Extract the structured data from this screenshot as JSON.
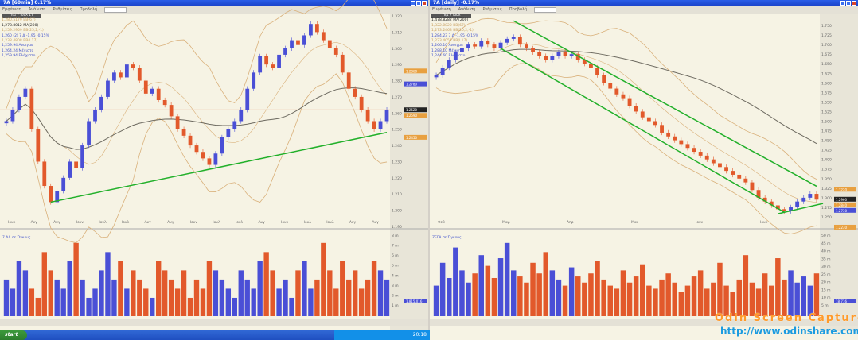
{
  "left": {
    "title": "7A [60min]  0.17%",
    "menu": [
      "Εμφάνιση",
      "Ανάλυση",
      "Ρυθμίσεις",
      "Προβολή"
    ],
    "legend": {
      "header": "Πιμ 7 Ιουλ 17",
      "lines": [
        {
          "t": "1,280.5179 BB(67)",
          "c": "#c8a060"
        },
        {
          "t": "1,278.8012 MA(200)",
          "c": "#222222"
        },
        {
          "t": "1,259.2959 BB(25,2,-1)",
          "c": "#c8a060"
        },
        {
          "t": "1,260 (2) 7 Δ  -1.95  -0.15%",
          "c": "#4455cc"
        },
        {
          "t": "1,238.4808 BB(L17)",
          "c": "#c8a060"
        },
        {
          "t": "1,259.94 Ανοιγμα",
          "c": "#4455cc"
        },
        {
          "t": "1,264.24 Μέγιστο",
          "c": "#4455cc"
        },
        {
          "t": "1,259.94 Ελάχιστο",
          "c": "#4455cc"
        }
      ]
    },
    "xlabels": [
      "Ιουλ",
      "Αυγ",
      "Αυγ",
      "Ιουν",
      "Ιουλ",
      "Ιουλ",
      "Αυγ",
      "Αυγ",
      "Ιουν",
      "Ιουλ",
      "Ιουλ",
      "Αυγ",
      "Ιουν",
      "Ιουλ",
      "Ιουλ",
      "Αυγ",
      "Αυγ"
    ],
    "vol_label": "7 ΔΔ σε Όγκους",
    "vol_ticks": [
      "8 m",
      "7 m",
      "6 m",
      "5 m",
      "4 m",
      "3 m",
      "2 m",
      "1 m"
    ],
    "vol_badge": "1,815,016"
  },
  "right": {
    "title": "7A [daily]  -0.17%",
    "menu": [
      "Εμφάνιση",
      "Ανάλυση",
      "Ρυθμίσεις",
      "Προβολή"
    ],
    "legend": {
      "header": "Πιμ 7 Ιουλ",
      "lines": [
        {
          "t": "1,478.8282 MA(200)",
          "c": "#222222"
        },
        {
          "t": "1,322.0820 BB(67)",
          "c": "#c8a060"
        },
        {
          "t": "1,273.2468 BB(20,2,-1)",
          "c": "#c8a060"
        },
        {
          "t": "1,284.23 7 Δ  -1.95  -0.15%",
          "c": "#4455cc"
        },
        {
          "t": "1,223.4051 BB(L17)",
          "c": "#c8a060"
        },
        {
          "t": "1,266.10 Ανοιγμα",
          "c": "#4455cc"
        },
        {
          "t": "1,288.10 Μέγιστο",
          "c": "#4455cc"
        },
        {
          "t": "1,244.60 Ελάχιστο",
          "c": "#4455cc"
        }
      ]
    },
    "xlabels": [
      "Φεβ",
      "Μαρ",
      "Απρ",
      "Μαι",
      "Ιουν",
      "Ιουλ"
    ],
    "vol_label": "ΖΕΓΑ σε Όγκους",
    "vol_ticks": [
      "50 m",
      "45 m",
      "40 m",
      "35 m",
      "30 m",
      "25 m",
      "20 m",
      "15 m",
      "10 m",
      "5 m"
    ],
    "vol_badge": "18,716"
  },
  "taskbar": {
    "start": "start",
    "clock": "20:18"
  },
  "watermark": {
    "line1": "Odin Screen Capture",
    "line2": "http://www.odinshare.com"
  },
  "colors": {
    "up": "#4a4fd6",
    "down": "#e2592b",
    "ma": "#6d6a60",
    "bands": "#d9b07a",
    "trend": "#22b02a",
    "bg": "#f6f3e4"
  },
  "chart_data": [
    {
      "type": "candlestick",
      "panel": "left",
      "ylim": [
        1.19,
        1.32
      ],
      "yticks": [
        1.32,
        1.31,
        1.3,
        1.29,
        1.28,
        1.27,
        1.26,
        1.25,
        1.24,
        1.23,
        1.22,
        1.21,
        1.2,
        1.19
      ],
      "close": [
        1.255,
        1.262,
        1.27,
        1.275,
        1.25,
        1.23,
        1.215,
        1.205,
        1.212,
        1.22,
        1.23,
        1.226,
        1.24,
        1.255,
        1.262,
        1.27,
        1.28,
        1.285,
        1.282,
        1.29,
        1.288,
        1.28,
        1.272,
        1.275,
        1.268,
        1.265,
        1.258,
        1.25,
        1.246,
        1.24,
        1.236,
        1.232,
        1.228,
        1.235,
        1.245,
        1.25,
        1.255,
        1.262,
        1.275,
        1.285,
        1.295,
        1.29,
        1.288,
        1.296,
        1.3,
        1.305,
        1.302,
        1.308,
        1.315,
        1.31,
        1.305,
        1.3,
        1.296,
        1.285,
        1.275,
        1.27,
        1.262,
        1.255,
        1.25,
        1.255,
        1.262
      ],
      "volume": [
        4,
        3,
        6,
        5,
        3,
        2,
        7,
        5,
        4,
        3,
        6,
        8,
        4,
        2,
        3,
        5,
        7,
        4,
        6,
        3,
        5,
        4,
        3,
        2,
        6,
        5,
        4,
        3,
        5,
        2,
        4,
        3,
        6,
        5,
        4,
        3,
        2,
        5,
        4,
        3,
        6,
        7,
        5,
        3,
        4,
        2,
        5,
        6,
        3,
        4,
        8,
        5,
        3,
        6,
        4,
        5,
        3,
        4,
        6,
        5,
        4
      ],
      "price_markers": [
        1.286,
        1.262,
        1.259,
        1.278,
        1.245
      ],
      "trendlines": [
        {
          "from": [
            7,
            1.205
          ],
          "to": [
            60,
            1.248
          ]
        }
      ],
      "hline": 1.262
    },
    {
      "type": "candlestick",
      "panel": "right",
      "ylim": [
        1.225,
        1.775
      ],
      "yticks": [
        1.75,
        1.725,
        1.7,
        1.675,
        1.65,
        1.625,
        1.6,
        1.575,
        1.55,
        1.525,
        1.5,
        1.475,
        1.45,
        1.425,
        1.4,
        1.375,
        1.35,
        1.325,
        1.3,
        1.275,
        1.25
      ],
      "close": [
        1.62,
        1.64,
        1.66,
        1.68,
        1.69,
        1.7,
        1.695,
        1.71,
        1.7,
        1.69,
        1.705,
        1.715,
        1.72,
        1.7,
        1.69,
        1.68,
        1.67,
        1.66,
        1.67,
        1.68,
        1.67,
        1.675,
        1.66,
        1.65,
        1.64,
        1.62,
        1.6,
        1.585,
        1.57,
        1.56,
        1.54,
        1.525,
        1.51,
        1.5,
        1.49,
        1.47,
        1.46,
        1.45,
        1.44,
        1.43,
        1.42,
        1.41,
        1.4,
        1.39,
        1.38,
        1.37,
        1.36,
        1.35,
        1.34,
        1.32,
        1.3,
        1.29,
        1.28,
        1.27,
        1.265,
        1.275,
        1.29,
        1.3,
        1.31,
        1.295
      ],
      "volume": [
        20,
        35,
        25,
        45,
        30,
        22,
        28,
        40,
        33,
        25,
        38,
        48,
        30,
        26,
        22,
        35,
        28,
        42,
        30,
        24,
        20,
        32,
        26,
        22,
        28,
        36,
        24,
        20,
        18,
        30,
        22,
        26,
        34,
        20,
        18,
        24,
        28,
        22,
        16,
        20,
        26,
        30,
        18,
        22,
        35,
        20,
        16,
        24,
        40,
        22,
        18,
        28,
        20,
        38,
        24,
        30,
        22,
        26,
        20,
        28
      ],
      "price_markers": [
        1.322,
        1.296,
        1.284,
        1.273,
        1.223
      ],
      "trendlines": [
        {
          "from": [
            12,
            1.762
          ],
          "to": [
            59,
            1.33
          ]
        },
        {
          "from": [
            10,
            1.69
          ],
          "to": [
            54,
            1.262
          ]
        },
        {
          "from": [
            53,
            1.258
          ],
          "to": [
            60,
            1.285
          ]
        }
      ]
    }
  ]
}
